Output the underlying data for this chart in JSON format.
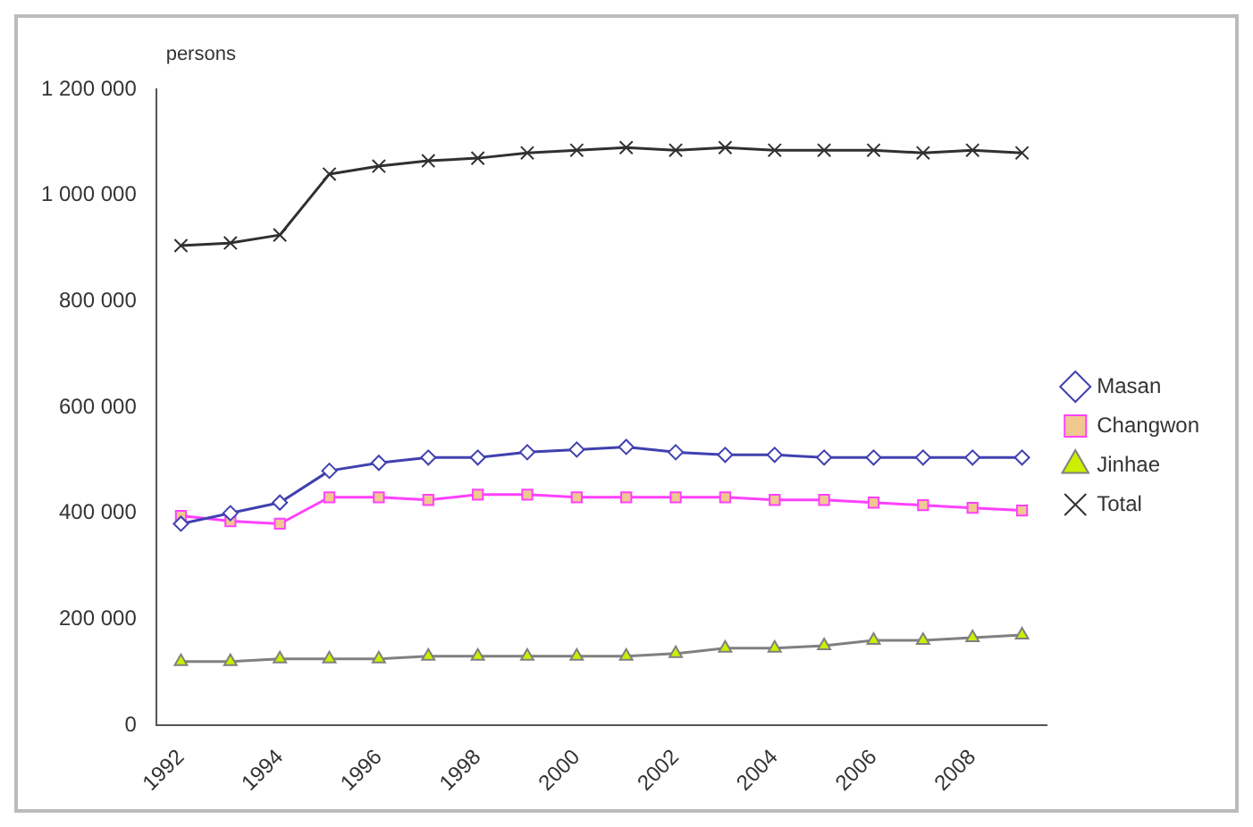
{
  "chart_data": {
    "type": "line",
    "ylabel": "persons",
    "categories": [
      "1992",
      null,
      "1994",
      null,
      "1996",
      null,
      "1998",
      null,
      "2000",
      null,
      "2002",
      null,
      "2004",
      null,
      "2006",
      null,
      "2008",
      null
    ],
    "ylim": [
      0,
      1200000
    ],
    "yticks": [
      {
        "value": 0,
        "label": "0"
      },
      {
        "value": 200000,
        "label": "200 000"
      },
      {
        "value": 400000,
        "label": "400 000"
      },
      {
        "value": 600000,
        "label": "600 000"
      },
      {
        "value": 800000,
        "label": "800 000"
      },
      {
        "value": 1000000,
        "label": "1 000 000"
      },
      {
        "value": 1200000,
        "label": "1 200 000"
      }
    ],
    "grid": false,
    "legend": "right",
    "series": [
      {
        "name": "Masan",
        "color": "#4040b0",
        "marker": "diamond",
        "values": [
          380000,
          400000,
          420000,
          480000,
          495000,
          505000,
          505000,
          515000,
          520000,
          525000,
          515000,
          510000,
          510000,
          505000,
          505000,
          505000,
          505000,
          505000
        ]
      },
      {
        "name": "Changwon",
        "color": "#ff40ff",
        "marker": "square",
        "values": [
          395000,
          385000,
          380000,
          430000,
          430000,
          425000,
          435000,
          435000,
          430000,
          430000,
          430000,
          430000,
          425000,
          425000,
          420000,
          415000,
          410000,
          405000
        ]
      },
      {
        "name": "Jinhae",
        "color": "#808080",
        "marker": "triangle",
        "values": [
          120000,
          120000,
          125000,
          125000,
          125000,
          130000,
          130000,
          130000,
          130000,
          130000,
          135000,
          145000,
          145000,
          150000,
          160000,
          160000,
          165000,
          170000
        ]
      },
      {
        "name": "Total",
        "color": "#303030",
        "marker": "cross",
        "values": [
          905000,
          910000,
          925000,
          1040000,
          1055000,
          1065000,
          1070000,
          1080000,
          1085000,
          1090000,
          1085000,
          1090000,
          1085000,
          1085000,
          1085000,
          1080000,
          1085000,
          1080000
        ]
      }
    ]
  }
}
